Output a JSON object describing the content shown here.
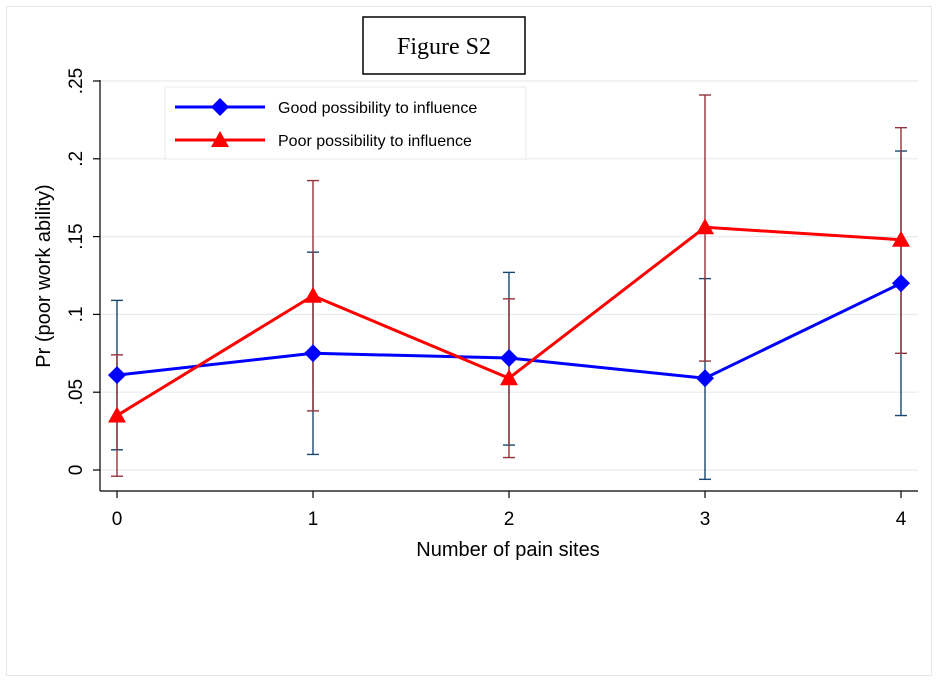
{
  "chart_data": {
    "type": "line",
    "title": "Figure S2",
    "xlabel": "Number of pain sites",
    "ylabel": "Pr (poor work ability)",
    "x": [
      0,
      1,
      2,
      3,
      4
    ],
    "x_tick_labels": [
      "0",
      "1",
      "2",
      "3",
      "4"
    ],
    "y_ticks": [
      0,
      0.05,
      0.1,
      0.15,
      0.2,
      0.25
    ],
    "y_tick_labels": [
      "0",
      ".05",
      ".1",
      ".15",
      ".2",
      ".25"
    ],
    "ylim": [
      -0.015,
      0.25
    ],
    "grid": true,
    "legend_position": "top-left",
    "error_bars": true,
    "series": [
      {
        "name": "Good possibility to influence",
        "color": "#0000ff",
        "marker": "diamond",
        "errbar_color": "#1a476f",
        "values": [
          0.061,
          0.075,
          0.072,
          0.059,
          0.12
        ],
        "lower": [
          0.013,
          0.01,
          0.016,
          -0.006,
          0.035
        ],
        "upper": [
          0.109,
          0.14,
          0.127,
          0.123,
          0.205
        ]
      },
      {
        "name": "Poor possibility to influence",
        "color": "#ff0000",
        "marker": "triangle",
        "errbar_color": "#90353b",
        "values": [
          0.035,
          0.112,
          0.059,
          0.156,
          0.148
        ],
        "lower": [
          -0.004,
          0.038,
          0.008,
          0.07,
          0.075
        ],
        "upper": [
          0.074,
          0.186,
          0.11,
          0.241,
          0.22
        ]
      }
    ]
  }
}
